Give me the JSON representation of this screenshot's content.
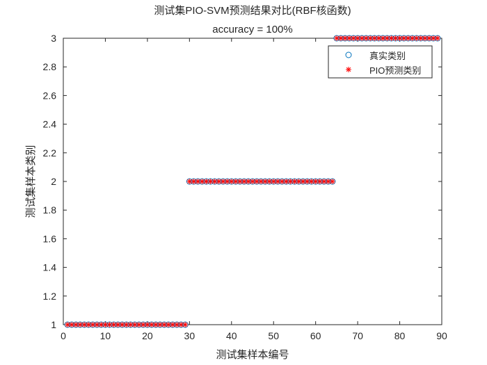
{
  "chart_data": {
    "type": "scatter",
    "title": "测试集PIO-SVM预测结果对比(RBF核函数)",
    "subtitle": "accuracy = 100%",
    "xlabel": "测试集样本编号",
    "ylabel": "测试集样本类别",
    "xlim": [
      0,
      90
    ],
    "ylim": [
      1,
      3
    ],
    "xticks": [
      "0",
      "10",
      "20",
      "30",
      "40",
      "50",
      "60",
      "70",
      "80",
      "90"
    ],
    "yticks": [
      "1",
      "1.2",
      "1.4",
      "1.6",
      "1.8",
      "2",
      "2.2",
      "2.4",
      "2.6",
      "2.8",
      "3"
    ],
    "grid": false,
    "legend_position": "top-right",
    "series": [
      {
        "name": "真实类别",
        "marker": "circle",
        "color": "#0072BD",
        "groups": [
          {
            "x_start": 1,
            "x_end": 29,
            "y": 1
          },
          {
            "x_start": 30,
            "x_end": 64,
            "y": 2
          },
          {
            "x_start": 65,
            "x_end": 89,
            "y": 3
          }
        ]
      },
      {
        "name": "PIO预测类别",
        "marker": "asterisk",
        "color": "#FF0000",
        "groups": [
          {
            "x_start": 1,
            "x_end": 29,
            "y": 1
          },
          {
            "x_start": 30,
            "x_end": 64,
            "y": 2
          },
          {
            "x_start": 65,
            "x_end": 89,
            "y": 3
          }
        ]
      }
    ]
  }
}
